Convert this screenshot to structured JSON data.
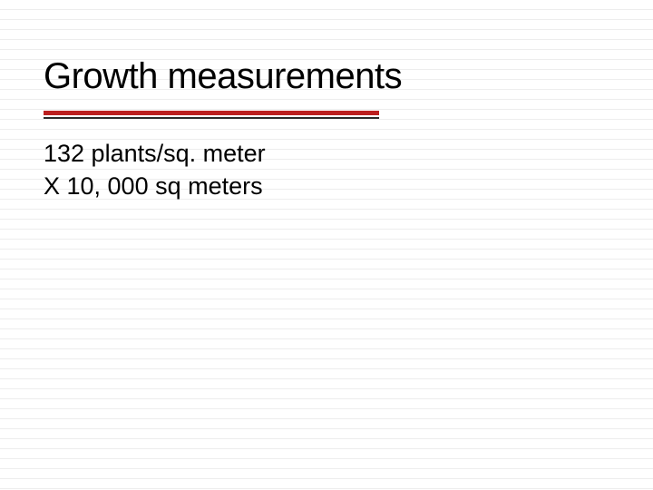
{
  "slide": {
    "title": "Growth measurements",
    "body": {
      "line1": "132 plants/sq. meter",
      "line2": "X 10, 000 sq meters"
    },
    "style": {
      "title_fontsize": 40,
      "body_fontsize": 27,
      "title_color": "#000000",
      "body_color": "#000000",
      "accent_red": "#bb1f1f",
      "accent_black": "#2b2b2b",
      "background_color": "#ffffff",
      "ruled_line_color": "#ededed",
      "ruled_line_spacing": 11,
      "underline_width": 370,
      "red_line_height": 5,
      "black_line_height": 2,
      "font_family": "Verdana"
    }
  }
}
